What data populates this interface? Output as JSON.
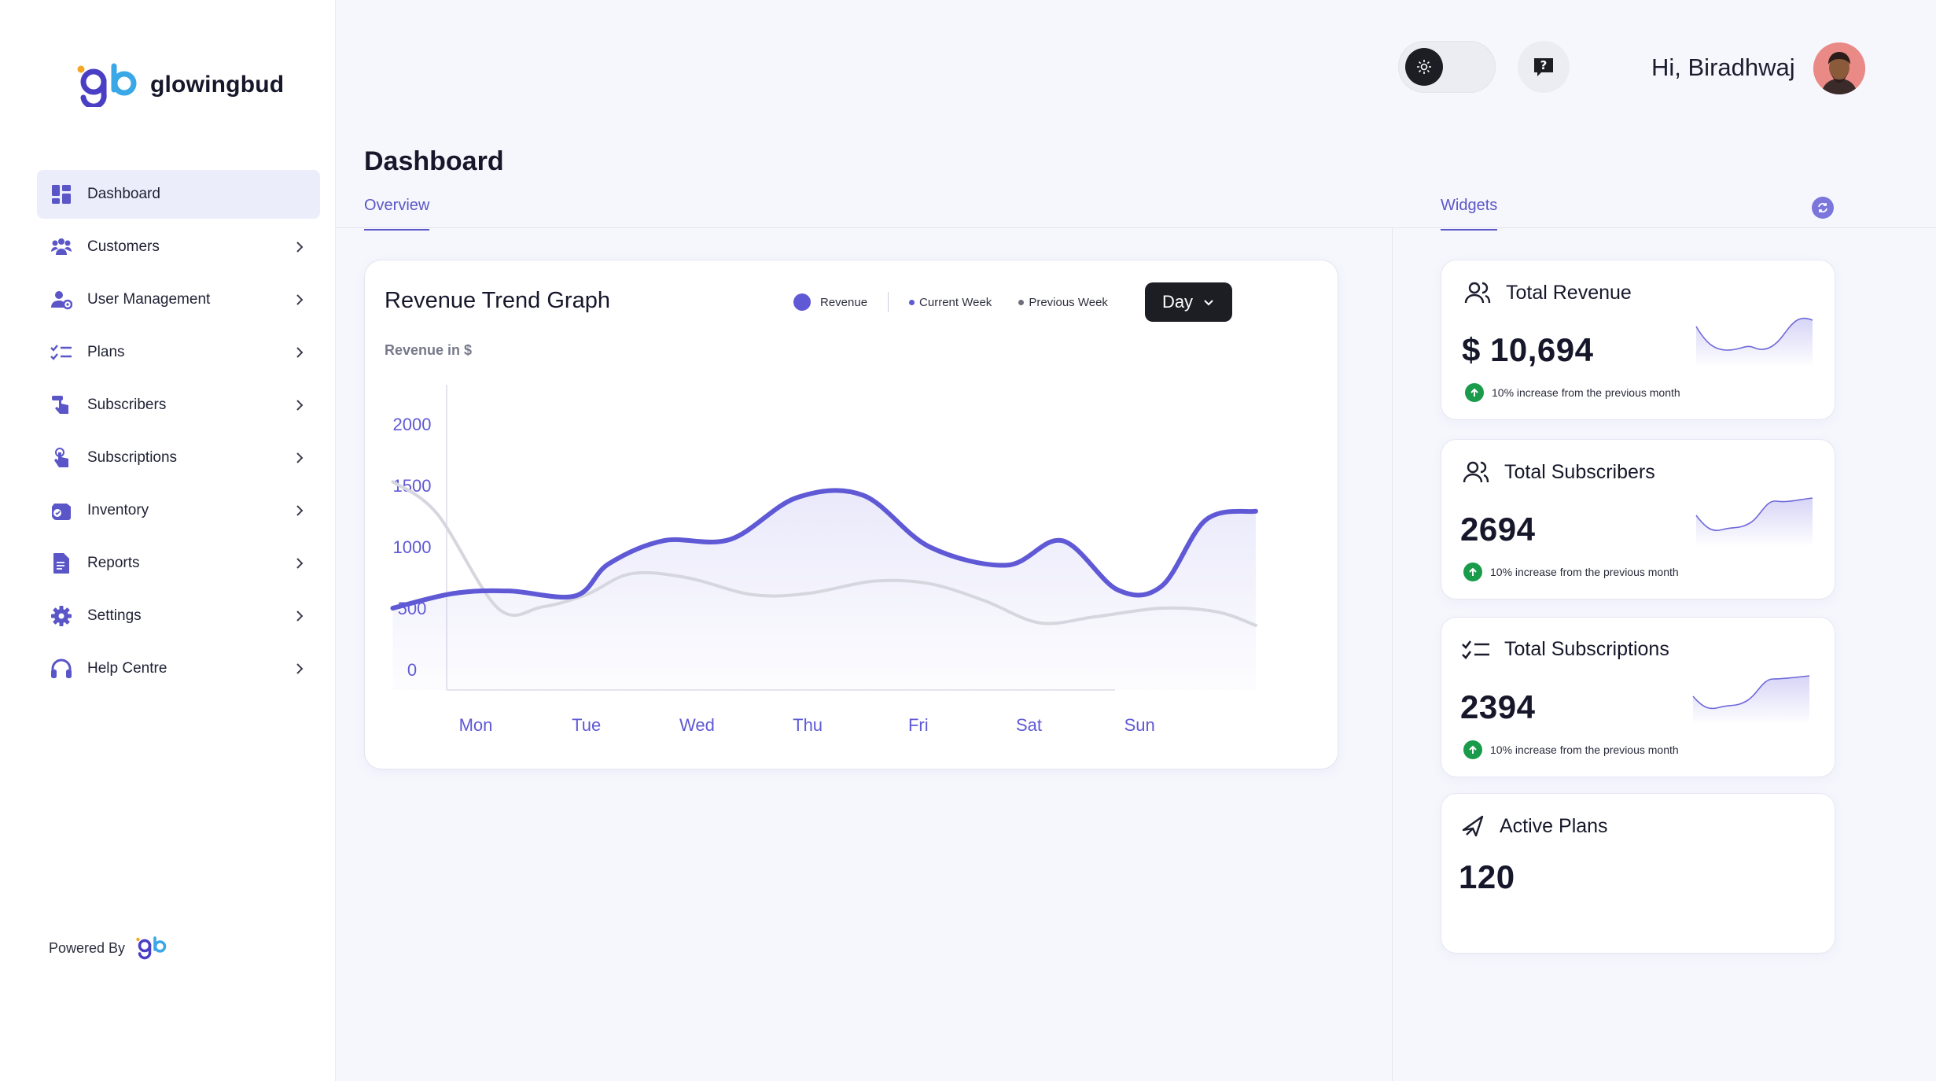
{
  "brand": {
    "name": "glowingbud"
  },
  "sidebar": {
    "items": [
      {
        "label": "Dashboard"
      },
      {
        "label": "Customers"
      },
      {
        "label": "User Management"
      },
      {
        "label": "Plans"
      },
      {
        "label": "Subscribers"
      },
      {
        "label": "Subscriptions"
      },
      {
        "label": "Inventory"
      },
      {
        "label": "Reports"
      },
      {
        "label": "Settings"
      },
      {
        "label": "Help Centre"
      }
    ],
    "powered_by": "Powered By"
  },
  "header": {
    "greeting": "Hi, Biradhwaj"
  },
  "page": {
    "title": "Dashboard",
    "tabs": {
      "overview": "Overview",
      "widgets": "Widgets"
    }
  },
  "chart": {
    "title": "Revenue Trend Graph",
    "legend": {
      "revenue": "Revenue",
      "current": "Current Week",
      "previous": "Previous Week"
    },
    "range_button": "Day",
    "ylabel": "Revenue in $"
  },
  "chart_data": {
    "type": "line",
    "title": "Revenue Trend Graph",
    "ylabel": "Revenue in $",
    "categories": [
      "Mon",
      "Tue",
      "Wed",
      "Thu",
      "Fri",
      "Sat",
      "Sun"
    ],
    "yticks": [
      0,
      500,
      1000,
      1500,
      2000
    ],
    "ylim": [
      0,
      2200
    ],
    "series": [
      {
        "name": "Current Week",
        "color": "#5f59d6",
        "x": [
          -0.75,
          -0.2,
          0.3,
          0.9,
          1.2,
          1.7,
          2.3,
          2.9,
          3.5,
          4.1,
          4.8,
          5.3,
          5.8,
          6.2,
          6.6,
          7.05
        ],
        "y": [
          500,
          620,
          640,
          600,
          860,
          1050,
          1060,
          1400,
          1420,
          1000,
          850,
          1050,
          650,
          680,
          1220,
          1290
        ]
      },
      {
        "name": "Previous Week",
        "color": "#d6d6de",
        "x": [
          -0.75,
          -0.35,
          0.2,
          0.6,
          1.0,
          1.4,
          1.9,
          2.5,
          3.0,
          3.6,
          4.1,
          4.6,
          5.1,
          5.6,
          6.2,
          6.7,
          7.05
        ],
        "y": [
          1530,
          1270,
          500,
          510,
          610,
          780,
          750,
          610,
          620,
          720,
          700,
          560,
          380,
          430,
          500,
          470,
          360
        ]
      }
    ]
  },
  "widgets": [
    {
      "title": "Total Revenue",
      "value": "$ 10,694",
      "note": "10% increase from the previous month"
    },
    {
      "title": "Total Subscribers",
      "value": "2694",
      "note": "10% increase from the previous month"
    },
    {
      "title": "Total Subscriptions",
      "value": "2394",
      "note": "10% increase from the previous month"
    },
    {
      "title": "Active Plans",
      "value": "120"
    }
  ],
  "colors": {
    "accent": "#5b56c7",
    "accent_line": "#5f59d6",
    "success": "#1a9b4b",
    "dark": "#1d1e24"
  }
}
